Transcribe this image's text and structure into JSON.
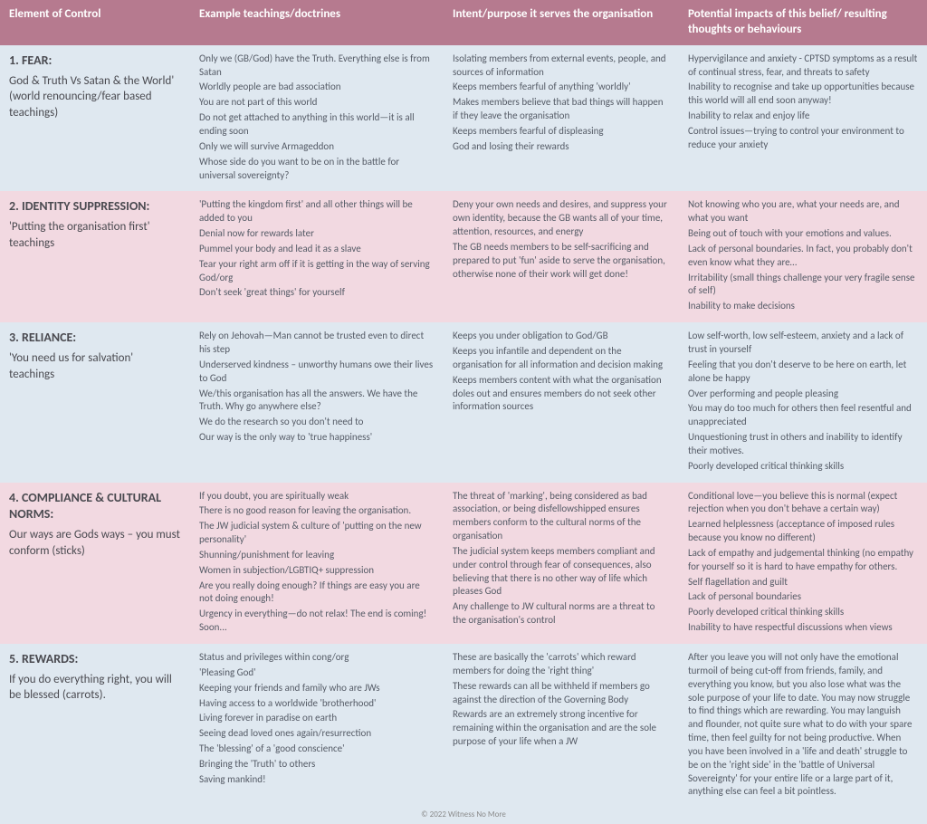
{
  "headers": {
    "c1": "Element of Control",
    "c2": "Example teachings/doctrines",
    "c3": "Intent/purpose it serves the organisation",
    "c4": "Potential impacts of this belief/ resulting thoughts or behaviours"
  },
  "rows": [
    {
      "bg": "light",
      "num": "1. FEAR:",
      "subtitle": "God & Truth Vs Satan & the World' (world renouncing/fear based teachings)",
      "examples": [
        "Only we (GB/God) have the Truth. Everything else is from Satan",
        "Worldly people are bad association",
        "You are not part of this world",
        "Do not get attached to anything in this world—it is all ending soon",
        "Only we will survive Armageddon",
        "Whose side do you want to be on in the battle for universal sovereignty?"
      ],
      "intent": [
        "Isolating members from external events, people, and sources of information",
        "Keeps members fearful of anything 'worldly'",
        "Makes members believe that bad things will happen if they leave the organisation",
        "Keeps members fearful of displeasing",
        "God and losing their rewards"
      ],
      "impacts": [
        "Hypervigilance and anxiety - CPTSD symptoms as a result of continual stress, fear, and threats to safety",
        "Inability to recognise and take up opportunities because this world will all end soon anyway!",
        "Inability to relax and enjoy life",
        "Control issues—trying to control your environment to reduce your anxiety"
      ]
    },
    {
      "bg": "pink",
      "num": "2. IDENTITY SUPPRESSION:",
      "subtitle": "'Putting the organisation first' teachings",
      "examples": [
        "'Putting the kingdom first' and all other things will be added to you",
        "Denial now for rewards later",
        "Pummel your body and lead it as a slave",
        "Tear your right arm off if it is getting in the way of serving God/org",
        "Don't seek 'great things' for yourself"
      ],
      "intent": [
        "Deny your own needs and desires, and suppress your own identity, because the GB wants all of your time, attention, resources, and energy",
        "The GB needs members to be self-sacrificing and prepared to put 'fun' aside to serve the organisation, otherwise none of their work will get done!"
      ],
      "impacts": [
        "Not knowing who you are, what your needs are, and what you want",
        "Being out of touch with your emotions and values.",
        "Lack of personal boundaries. In fact, you probably don't even know what they are…",
        "Irritability (small things challenge your very fragile sense of self)",
        "Inability to make decisions"
      ]
    },
    {
      "bg": "light",
      "num": "3. RELIANCE:",
      "subtitle": "'You need us for salvation' teachings",
      "examples": [
        "Rely on Jehovah—Man cannot be trusted even to direct his step",
        "Underserved kindness – unworthy humans owe their lives to God",
        "We/this organisation has all the answers. We have the Truth. Why go anywhere else?",
        "We do the research so you don't need to",
        "Our way is the only way to 'true happiness'"
      ],
      "intent": [
        "Keeps you under obligation to God/GB",
        "Keeps you infantile and dependent on the organisation for all information and decision making",
        "Keeps members content with what the organisation doles out and ensures members do not seek other information sources"
      ],
      "impacts": [
        "Low self-worth, low self-esteem, anxiety and a lack of trust in yourself",
        "Feeling that you don't deserve to be here on earth, let alone be happy",
        "Over performing and people pleasing",
        "You may do too much for others then feel resentful and unappreciated",
        "Unquestioning trust in others and inability to identify their motives.",
        "Poorly developed critical thinking skills"
      ]
    },
    {
      "bg": "pink",
      "num": "4. COMPLIANCE & CULTURAL NORMS:",
      "subtitle": "Our ways are Gods ways – you must conform (sticks)",
      "examples": [
        "If you doubt, you are spiritually weak",
        "There is no good reason for leaving the organisation.",
        "The JW judicial system & culture of 'putting on the new personality'",
        "Shunning/punishment for leaving",
        "Women in subjection/LGBTIQ+ suppression",
        "Are you really doing enough? If things are easy you are not doing enough!",
        "Urgency in everything—do not relax! The end is coming! Soon..."
      ],
      "intent": [
        "The threat of 'marking', being considered as bad association,  or being disfellowshipped  ensures members conform to the cultural norms of the organisation",
        "The judicial system keeps members compliant and under control through fear of consequences, also believing that there is no other way of life which pleases God",
        "Any challenge to JW cultural norms are a threat to the organisation's control"
      ],
      "impacts": [
        "Conditional love—you believe this is normal (expect rejection when you don't behave a certain way)",
        "Learned helplessness (acceptance of imposed rules because you know no different)",
        "Lack of empathy and judgemental thinking (no empathy for yourself so it is hard to have empathy for others.",
        "Self flagellation and guilt",
        "Lack of personal boundaries",
        "Poorly developed critical thinking skills",
        "Inability to have respectful discussions when views"
      ]
    },
    {
      "bg": "light",
      "num": "5. REWARDS:",
      "subtitle": "If you do everything right, you will be blessed (carrots).",
      "examples": [
        "Status and privileges within cong/org",
        "'Pleasing God'",
        "Keeping your friends and family who are JWs",
        "Having access to a worldwide 'brotherhood'",
        "Living forever in paradise on earth",
        "Seeing dead loved ones again/resurrection",
        "The 'blessing' of a 'good conscience'",
        "Bringing the 'Truth' to others",
        "Saving mankind!"
      ],
      "intent": [
        "These are basically the 'carrots' which reward members for doing the 'right thing'",
        "These rewards can all be withheld if members go against the direction of the Governing Body",
        "Rewards are an extremely strong incentive for remaining within the organisation and are the sole purpose of your life when a JW"
      ],
      "impacts": [
        "After you leave you will not only have the emotional turmoil of being cut-off from friends, family, and everything you know, but you also lose what was the sole purpose of your life to date. You may now struggle to find things which are rewarding.  You may languish and flounder, not quite sure what to do with your spare time, then feel guilty for not being productive. When you have been involved in a 'life and death' struggle to be on the 'right side' in the 'battle of Universal Sovereignty' for your entire life or a large part of it, anything else can feel a bit pointless."
      ]
    }
  ],
  "footer": "© 2022 Witness No More"
}
